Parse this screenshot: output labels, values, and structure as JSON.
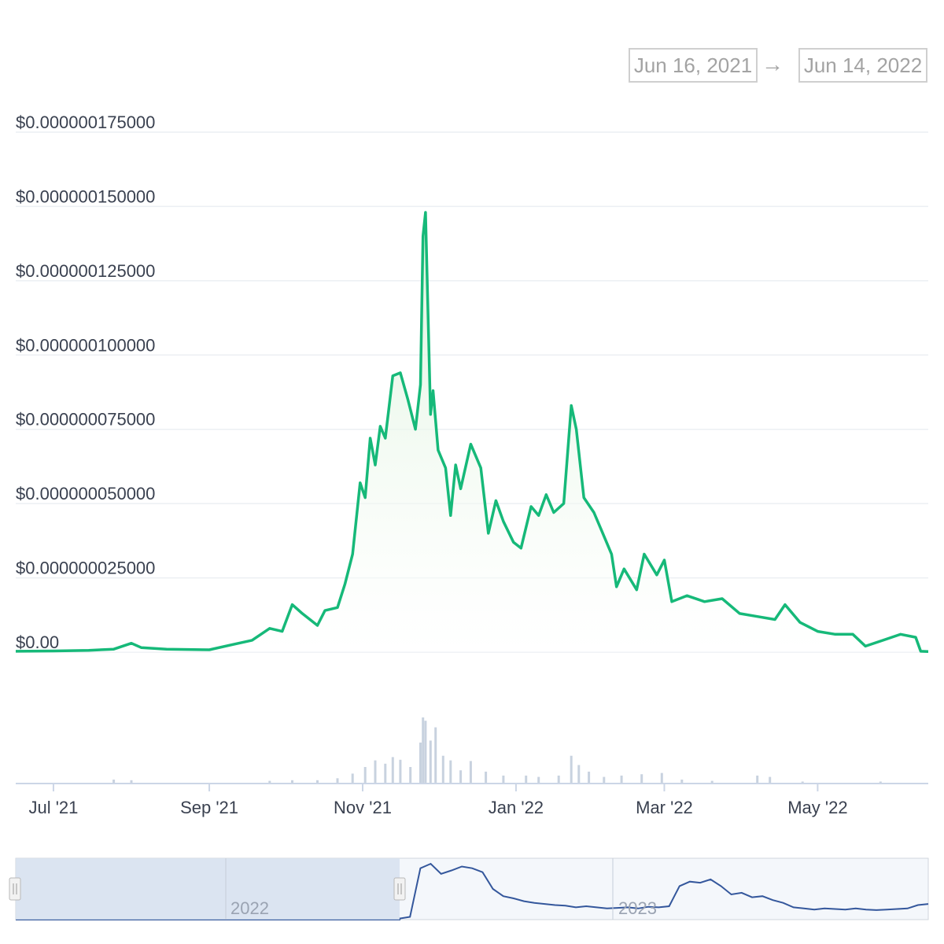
{
  "date_range": {
    "start": "Jun 16, 2021",
    "arrow": "→",
    "end": "Jun 14, 2022"
  },
  "colors": {
    "price_line": "#16b979",
    "price_fill": "#e6f6e5",
    "volume_bar": "#c8d2df",
    "grid": "#eceff3",
    "navigator_line": "#34579c",
    "navigator_mask": "#d6e0ee"
  },
  "chart_data": {
    "type": "line",
    "title": "",
    "xlabel": "",
    "ylabel": "",
    "x_range": [
      "2021-06-16",
      "2022-06-14"
    ],
    "ylim": [
      0,
      1.75e-07
    ],
    "y_ticks": [
      "$0.00",
      "$0.000000025000",
      "$0.000000050000",
      "$0.000000075000",
      "$0.000000100000",
      "$0.000000125000",
      "$0.000000150000",
      "$0.000000175000"
    ],
    "y_tick_values": [
      0,
      2.5e-08,
      5e-08,
      7.5e-08,
      1e-07,
      1.25e-07,
      1.5e-07,
      1.75e-07
    ],
    "x_ticks": [
      {
        "label": "Jul '21",
        "date": "2021-07-01"
      },
      {
        "label": "Sep '21",
        "date": "2021-09-01"
      },
      {
        "label": "Nov '21",
        "date": "2021-11-01"
      },
      {
        "label": "Jan '22",
        "date": "2022-01-01"
      },
      {
        "label": "Mar '22",
        "date": "2022-03-01"
      },
      {
        "label": "May '22",
        "date": "2022-05-01"
      }
    ],
    "series": [
      {
        "values_note": "price in USD, [date, price]",
        "points": [
          [
            "2021-06-16",
            3e-10
          ],
          [
            "2021-07-01",
            4e-10
          ],
          [
            "2021-07-15",
            6e-10
          ],
          [
            "2021-07-25",
            1e-09
          ],
          [
            "2021-08-01",
            3e-09
          ],
          [
            "2021-08-05",
            1.5e-09
          ],
          [
            "2021-08-15",
            1e-09
          ],
          [
            "2021-09-01",
            8e-10
          ],
          [
            "2021-09-10",
            2.5e-09
          ],
          [
            "2021-09-18",
            4e-09
          ],
          [
            "2021-09-25",
            8e-09
          ],
          [
            "2021-09-30",
            7e-09
          ],
          [
            "2021-10-04",
            1.6e-08
          ],
          [
            "2021-10-08",
            1.3e-08
          ],
          [
            "2021-10-14",
            9e-09
          ],
          [
            "2021-10-17",
            1.4e-08
          ],
          [
            "2021-10-22",
            1.5e-08
          ],
          [
            "2021-10-25",
            2.3e-08
          ],
          [
            "2021-10-28",
            3.3e-08
          ],
          [
            "2021-10-31",
            5.7e-08
          ],
          [
            "2021-11-02",
            5.2e-08
          ],
          [
            "2021-11-04",
            7.2e-08
          ],
          [
            "2021-11-06",
            6.3e-08
          ],
          [
            "2021-11-08",
            7.6e-08
          ],
          [
            "2021-11-10",
            7.2e-08
          ],
          [
            "2021-11-13",
            9.3e-08
          ],
          [
            "2021-11-16",
            9.4e-08
          ],
          [
            "2021-11-19",
            8.5e-08
          ],
          [
            "2021-11-22",
            7.5e-08
          ],
          [
            "2021-11-24",
            9e-08
          ],
          [
            "2021-11-25",
            1.4e-07
          ],
          [
            "2021-11-26",
            1.48e-07
          ],
          [
            "2021-11-28",
            8e-08
          ],
          [
            "2021-11-29",
            8.8e-08
          ],
          [
            "2021-12-01",
            6.8e-08
          ],
          [
            "2021-12-04",
            6.2e-08
          ],
          [
            "2021-12-06",
            4.6e-08
          ],
          [
            "2021-12-08",
            6.3e-08
          ],
          [
            "2021-12-10",
            5.5e-08
          ],
          [
            "2021-12-14",
            7e-08
          ],
          [
            "2021-12-18",
            6.2e-08
          ],
          [
            "2021-12-21",
            4e-08
          ],
          [
            "2021-12-24",
            5.1e-08
          ],
          [
            "2021-12-27",
            4.4e-08
          ],
          [
            "2021-12-31",
            3.7e-08
          ],
          [
            "2022-01-03",
            3.5e-08
          ],
          [
            "2022-01-07",
            4.9e-08
          ],
          [
            "2022-01-10",
            4.6e-08
          ],
          [
            "2022-01-13",
            5.3e-08
          ],
          [
            "2022-01-16",
            4.7e-08
          ],
          [
            "2022-01-20",
            5e-08
          ],
          [
            "2022-01-23",
            8.3e-08
          ],
          [
            "2022-01-25",
            7.5e-08
          ],
          [
            "2022-01-28",
            5.2e-08
          ],
          [
            "2022-02-01",
            4.7e-08
          ],
          [
            "2022-02-04",
            4.1e-08
          ],
          [
            "2022-02-08",
            3.3e-08
          ],
          [
            "2022-02-10",
            2.2e-08
          ],
          [
            "2022-02-13",
            2.8e-08
          ],
          [
            "2022-02-18",
            2.1e-08
          ],
          [
            "2022-02-21",
            3.3e-08
          ],
          [
            "2022-02-26",
            2.6e-08
          ],
          [
            "2022-03-01",
            3.1e-08
          ],
          [
            "2022-03-04",
            1.7e-08
          ],
          [
            "2022-03-10",
            1.9e-08
          ],
          [
            "2022-03-17",
            1.7e-08
          ],
          [
            "2022-03-24",
            1.8e-08
          ],
          [
            "2022-03-31",
            1.3e-08
          ],
          [
            "2022-04-07",
            1.2e-08
          ],
          [
            "2022-04-14",
            1.1e-08
          ],
          [
            "2022-04-18",
            1.6e-08
          ],
          [
            "2022-04-24",
            1e-08
          ],
          [
            "2022-05-01",
            7e-09
          ],
          [
            "2022-05-08",
            6e-09
          ],
          [
            "2022-05-15",
            6e-09
          ],
          [
            "2022-05-20",
            2e-09
          ],
          [
            "2022-05-27",
            4e-09
          ],
          [
            "2022-06-03",
            6e-09
          ],
          [
            "2022-06-09",
            5e-09
          ],
          [
            "2022-06-11",
            3e-10
          ],
          [
            "2022-06-14",
            2e-10
          ]
        ]
      }
    ],
    "volume": {
      "description": "daily trading volume bars (relative)",
      "points": [
        [
          "2021-07-25",
          0.06
        ],
        [
          "2021-08-01",
          0.05
        ],
        [
          "2021-09-25",
          0.04
        ],
        [
          "2021-10-04",
          0.05
        ],
        [
          "2021-10-14",
          0.05
        ],
        [
          "2021-10-22",
          0.08
        ],
        [
          "2021-10-28",
          0.15
        ],
        [
          "2021-11-02",
          0.25
        ],
        [
          "2021-11-06",
          0.35
        ],
        [
          "2021-11-10",
          0.3
        ],
        [
          "2021-11-13",
          0.4
        ],
        [
          "2021-11-16",
          0.36
        ],
        [
          "2021-11-20",
          0.25
        ],
        [
          "2021-11-24",
          0.62
        ],
        [
          "2021-11-25",
          1.0
        ],
        [
          "2021-11-26",
          0.95
        ],
        [
          "2021-11-28",
          0.65
        ],
        [
          "2021-11-30",
          0.85
        ],
        [
          "2021-12-03",
          0.42
        ],
        [
          "2021-12-06",
          0.35
        ],
        [
          "2021-12-10",
          0.2
        ],
        [
          "2021-12-14",
          0.34
        ],
        [
          "2021-12-20",
          0.18
        ],
        [
          "2021-12-27",
          0.12
        ],
        [
          "2022-01-05",
          0.12
        ],
        [
          "2022-01-10",
          0.1
        ],
        [
          "2022-01-18",
          0.12
        ],
        [
          "2022-01-23",
          0.42
        ],
        [
          "2022-01-26",
          0.28
        ],
        [
          "2022-01-30",
          0.18
        ],
        [
          "2022-02-05",
          0.1
        ],
        [
          "2022-02-12",
          0.12
        ],
        [
          "2022-02-20",
          0.14
        ],
        [
          "2022-02-28",
          0.16
        ],
        [
          "2022-03-08",
          0.06
        ],
        [
          "2022-03-20",
          0.04
        ],
        [
          "2022-04-07",
          0.12
        ],
        [
          "2022-04-12",
          0.1
        ],
        [
          "2022-04-25",
          0.03
        ],
        [
          "2022-05-26",
          0.03
        ]
      ]
    },
    "navigator": {
      "labels": [
        "2022",
        "2023"
      ],
      "selected_range": [
        "2021-06-16",
        "2022-06-14"
      ]
    }
  }
}
